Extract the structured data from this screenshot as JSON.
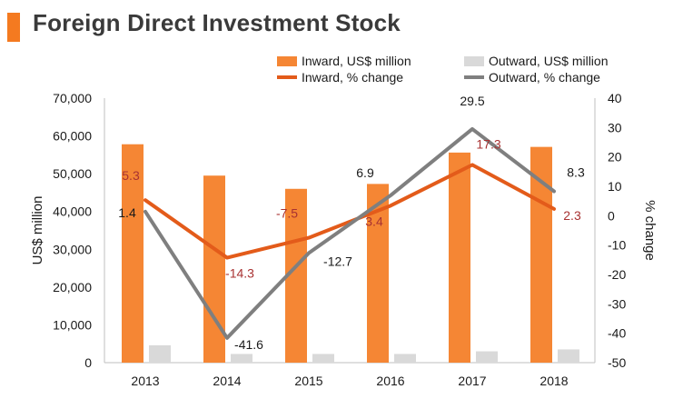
{
  "page": {
    "title": "Foreign Direct Investment Stock"
  },
  "chart_data": {
    "type": "bar",
    "title": "Foreign Direct Investment Stock",
    "categories": [
      "2013",
      "2014",
      "2015",
      "2016",
      "2017",
      "2018"
    ],
    "ylabel": "US$ million",
    "y2label": "% change",
    "ylim": [
      0,
      70000
    ],
    "y2lim": [
      -50,
      40
    ],
    "yticks": [
      "0",
      "10,000",
      "20,000",
      "30,000",
      "40,000",
      "50,000",
      "60,000",
      "70,000"
    ],
    "y2ticks": [
      "-50",
      "-40",
      "-30",
      "-20",
      "-10",
      "0",
      "10",
      "20",
      "30",
      "40"
    ],
    "bar_series": [
      {
        "name": "Inward, US$ million",
        "color": "#f58634",
        "values": [
          57800,
          49500,
          46000,
          47300,
          55600,
          57100
        ]
      },
      {
        "name": "Outward, US$ million",
        "color": "#d9d9d9",
        "values": [
          4600,
          2300,
          2300,
          2300,
          3000,
          3500
        ]
      }
    ],
    "line_series": [
      {
        "name": "Inward, % change",
        "color": "#e35b1a",
        "label_color": "#a83232",
        "values": [
          5.3,
          -14.3,
          -7.5,
          3.4,
          17.3,
          2.3
        ],
        "labels": [
          "5.3",
          "-14.3",
          "-7.5",
          "3.4",
          "17.3",
          "2.3"
        ]
      },
      {
        "name": "Outward, % change",
        "color": "#7f7f7f",
        "label_color": "#1a1a1a",
        "values": [
          1.4,
          -41.6,
          -12.7,
          6.9,
          29.5,
          8.3
        ],
        "labels": [
          "1.4",
          "-41.6",
          "-12.7",
          "6.9",
          "29.5",
          "8.3"
        ]
      }
    ],
    "legend_position": "top-right",
    "grid": false
  }
}
